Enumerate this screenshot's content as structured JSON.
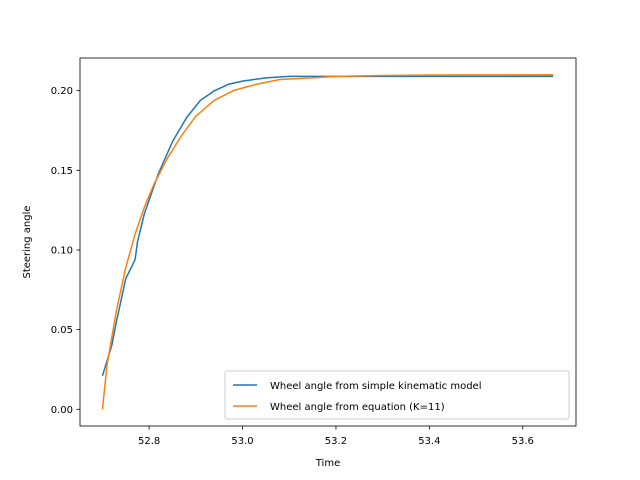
{
  "chart_data": {
    "type": "line",
    "xlabel": "Time",
    "ylabel": "Steering angle",
    "xlim": [
      52.652,
      53.714
    ],
    "ylim": [
      -0.0105,
      0.2205
    ],
    "xticks": [
      52.8,
      53.0,
      53.2,
      53.4,
      53.6
    ],
    "xtick_labels": [
      "52.8",
      "53.0",
      "53.2",
      "53.4",
      "53.6"
    ],
    "yticks": [
      0.0,
      0.05,
      0.1,
      0.15,
      0.2
    ],
    "ytick_labels": [
      "0.00",
      "0.05",
      "0.10",
      "0.15",
      "0.20"
    ],
    "grid": false,
    "legend_position": "lower-right",
    "series": [
      {
        "name": "Wheel angle from simple kinematic model",
        "color": "#1f77b4",
        "x": [
          52.7,
          52.72,
          52.73,
          52.75,
          52.77,
          52.775,
          52.79,
          52.82,
          52.85,
          52.88,
          52.91,
          52.94,
          52.97,
          53.0,
          53.05,
          53.1,
          53.15,
          53.2,
          53.3,
          53.4,
          53.5,
          53.665
        ],
        "y": [
          0.021,
          0.04,
          0.055,
          0.082,
          0.094,
          0.105,
          0.123,
          0.148,
          0.168,
          0.183,
          0.194,
          0.2,
          0.204,
          0.206,
          0.208,
          0.209,
          0.209,
          0.209,
          0.209,
          0.209,
          0.209,
          0.209
        ]
      },
      {
        "name": "Wheel angle from equation (K=11)",
        "color": "#ff7f0e",
        "x": [
          52.7,
          52.71,
          52.73,
          52.75,
          52.77,
          52.79,
          52.81,
          52.84,
          52.87,
          52.9,
          52.94,
          52.98,
          53.03,
          53.08,
          53.15,
          53.2,
          53.3,
          53.4,
          53.5,
          53.665
        ],
        "y": [
          0.0,
          0.028,
          0.062,
          0.089,
          0.11,
          0.127,
          0.141,
          0.158,
          0.172,
          0.184,
          0.194,
          0.2,
          0.204,
          0.207,
          0.208,
          0.209,
          0.2095,
          0.2098,
          0.2099,
          0.21
        ]
      }
    ]
  }
}
